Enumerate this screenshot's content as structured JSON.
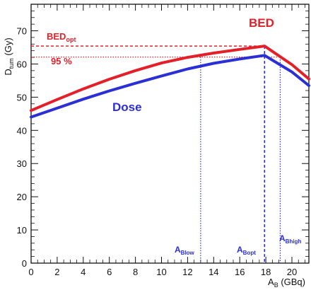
{
  "chart_data": {
    "type": "line",
    "title": "",
    "xlabel": {
      "main": "A",
      "sub": "B",
      "unit": " (GBq)"
    },
    "ylabel": {
      "main": "D",
      "sub": "tum",
      "unit": " (Gy)"
    },
    "xlim": [
      0,
      21.3
    ],
    "ylim": [
      0,
      78
    ],
    "x_ticks": [
      0,
      2,
      4,
      6,
      8,
      10,
      12,
      14,
      16,
      18,
      20
    ],
    "y_ticks": [
      0,
      10,
      20,
      30,
      40,
      50,
      60,
      70
    ],
    "grid": false,
    "colors": {
      "bed": "#e3202a",
      "dose": "#2b2fd6"
    },
    "series": [
      {
        "name": "BED",
        "color": "#e3202a",
        "x": [
          0,
          2,
          4,
          6,
          8,
          10,
          12,
          14,
          16,
          17.9,
          20,
          21.3
        ],
        "y": [
          46,
          49.3,
          52.5,
          55.4,
          58.0,
          60.3,
          62.0,
          63.3,
          64.4,
          65.4,
          59.8,
          55.5
        ]
      },
      {
        "name": "Dose",
        "color": "#2b2fd6",
        "x": [
          0,
          2,
          4,
          6,
          8,
          10,
          12,
          14,
          16,
          17.9,
          20,
          21.3
        ],
        "y": [
          44,
          46.7,
          49.4,
          51.9,
          54.2,
          56.4,
          58.5,
          60.2,
          61.5,
          62.6,
          57.6,
          53.5
        ]
      }
    ],
    "reference_lines": {
      "bed_opt": {
        "label_main": "BED",
        "label_sub": "opt",
        "y": 65.4
      },
      "pct95": {
        "label": "95 %",
        "y": 62.1
      }
    },
    "markers": [
      {
        "label_main": "A",
        "label_sub": "Blow",
        "x": 13.0,
        "y_top": 62.1
      },
      {
        "label_main": "A",
        "label_sub": "Bopt",
        "x": 17.9,
        "y_top": 65.4
      },
      {
        "label_main": "A",
        "label_sub": "Bhigh",
        "x": 19.1,
        "y_top": 62.1
      }
    ],
    "annotations": {
      "bed": "BED",
      "dose": "Dose"
    }
  }
}
